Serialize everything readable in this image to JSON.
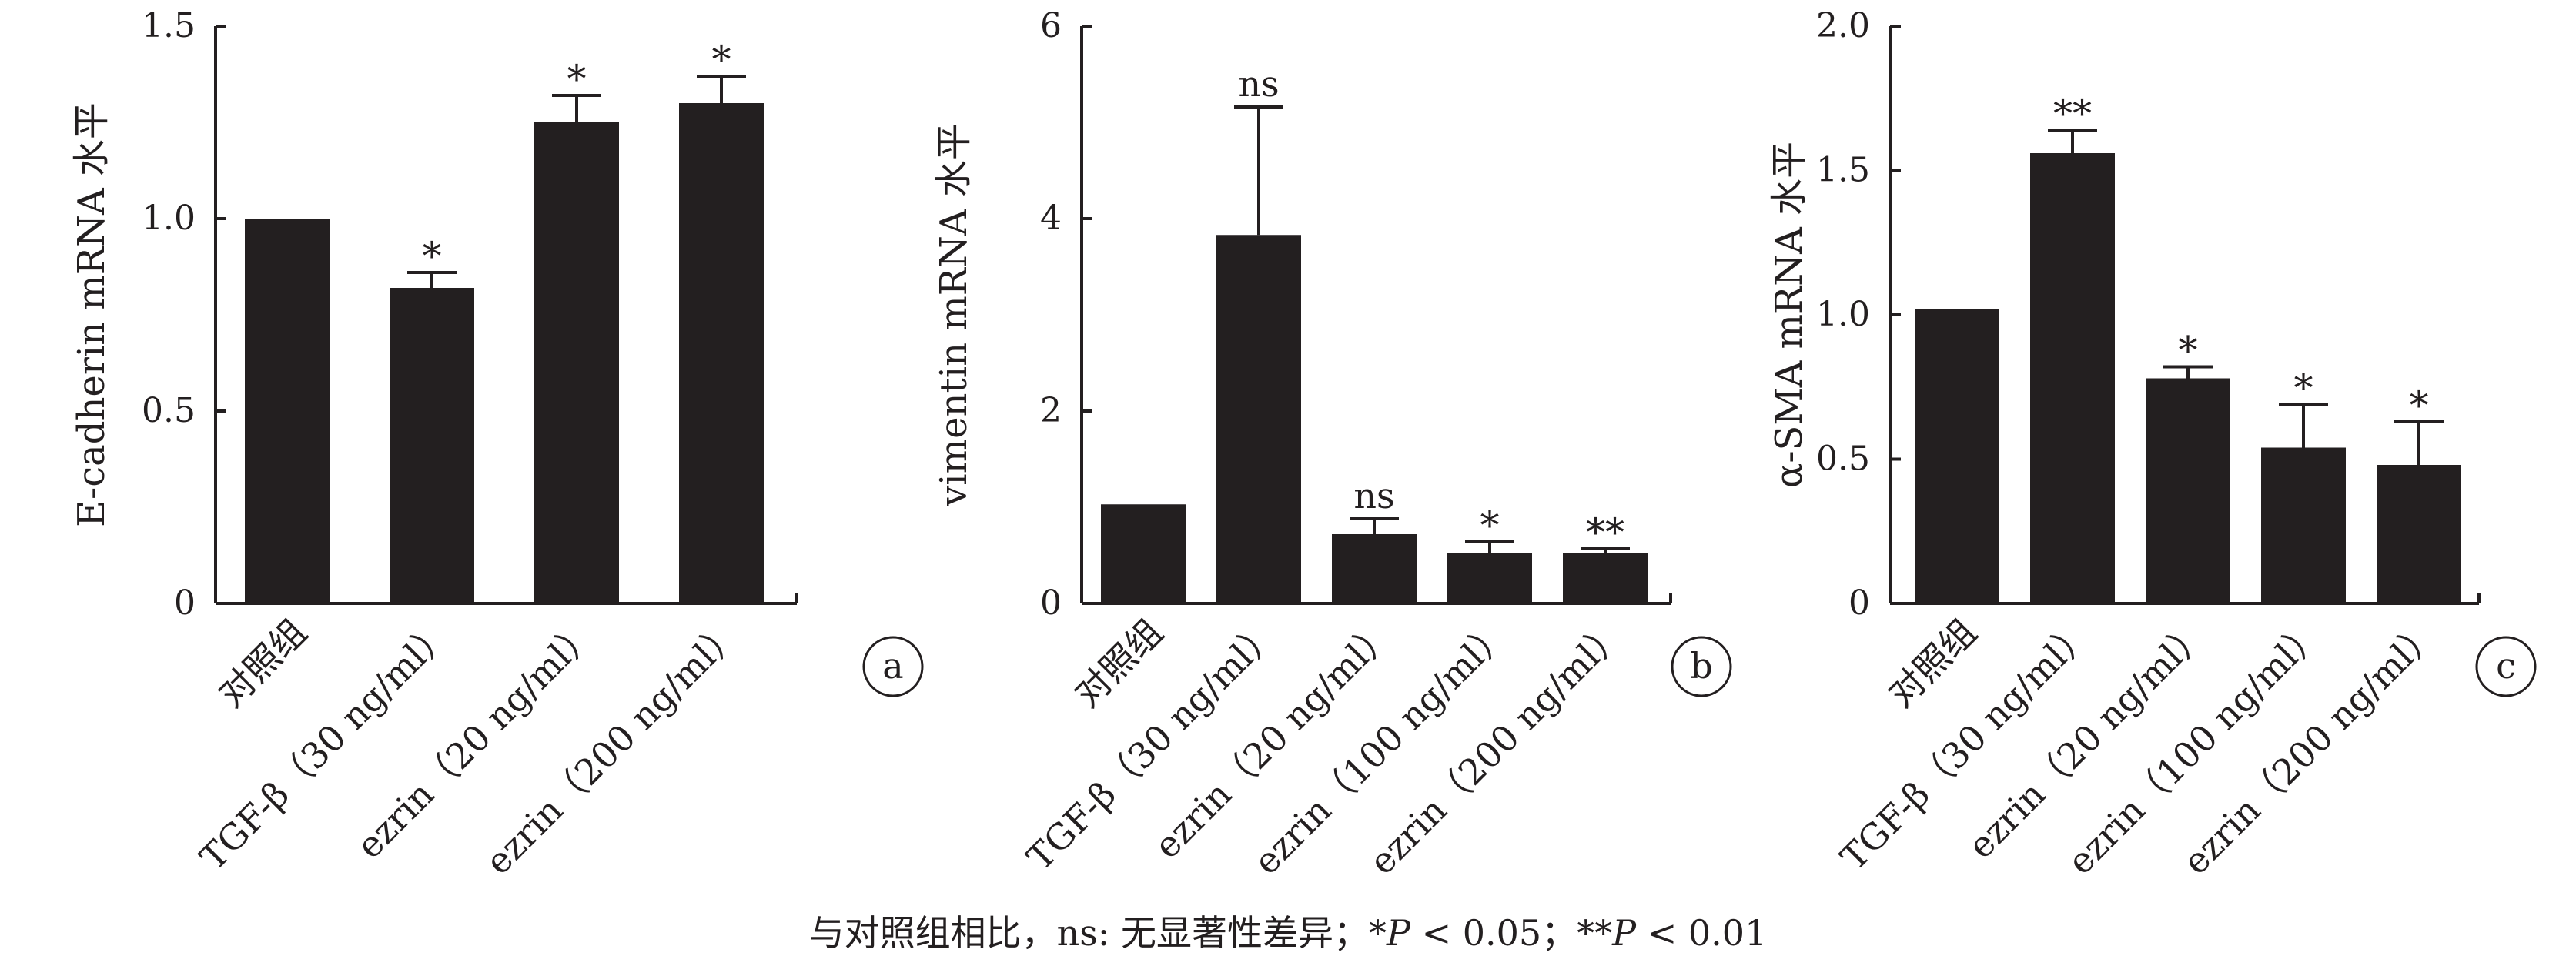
{
  "caption": {
    "prefix": "与对照组相比，ns: 无显著性差异；*",
    "p1_var": "P",
    "p1_rest": " < 0.05；**",
    "p2_var": "P",
    "p2_rest": " < 0.01"
  },
  "chart_data": [
    {
      "type": "bar",
      "panel": "a",
      "ylabel": "E-cadherin mRNA 水平",
      "ylim": [
        0,
        1.5
      ],
      "yticks": [
        0,
        0.5,
        1.0,
        1.5
      ],
      "ytick_labels": [
        "0",
        "0.5",
        "1.0",
        "1.5"
      ],
      "categories": [
        "对照组",
        "TGF-β（30 ng/ml）",
        "ezrin（20 ng/ml）",
        "ezrin（200 ng/ml）"
      ],
      "values": [
        1.0,
        0.82,
        1.25,
        1.3
      ],
      "errors": [
        0,
        0.04,
        0.07,
        0.07
      ],
      "significance": [
        "",
        "*",
        "*",
        "*"
      ],
      "bar_color": "#231f20"
    },
    {
      "type": "bar",
      "panel": "b",
      "ylabel": "vimentin mRNA 水平",
      "ylim": [
        0,
        6
      ],
      "yticks": [
        0,
        2,
        4,
        6
      ],
      "ytick_labels": [
        "0",
        "2",
        "4",
        "6"
      ],
      "categories": [
        "对照组",
        "TGF-β（30 ng/ml）",
        "ezrin（20 ng/ml）",
        "ezrin（100 ng/ml）",
        "ezrin（200 ng/ml）"
      ],
      "values": [
        1.03,
        3.83,
        0.72,
        0.52,
        0.52
      ],
      "errors": [
        0,
        1.33,
        0.16,
        0.12,
        0.05
      ],
      "significance": [
        "",
        "ns",
        "ns",
        "*",
        "**"
      ],
      "bar_color": "#231f20"
    },
    {
      "type": "bar",
      "panel": "c",
      "ylabel": "α-SMA mRNA 水平",
      "ylim": [
        0,
        2.0
      ],
      "yticks": [
        0,
        0.5,
        1.0,
        1.5,
        2.0
      ],
      "ytick_labels": [
        "0",
        "0.5",
        "1.0",
        "1.5",
        "2.0"
      ],
      "categories": [
        "对照组",
        "TGF-β（30 ng/ml）",
        "ezrin（20 ng/ml）",
        "ezrin（100 ng/ml）",
        "ezrin（200 ng/ml）"
      ],
      "values": [
        1.02,
        1.56,
        0.78,
        0.54,
        0.48
      ],
      "errors": [
        0,
        0.08,
        0.04,
        0.15,
        0.15
      ],
      "significance": [
        "",
        "**",
        "*",
        "*",
        "*"
      ],
      "bar_color": "#231f20"
    }
  ]
}
